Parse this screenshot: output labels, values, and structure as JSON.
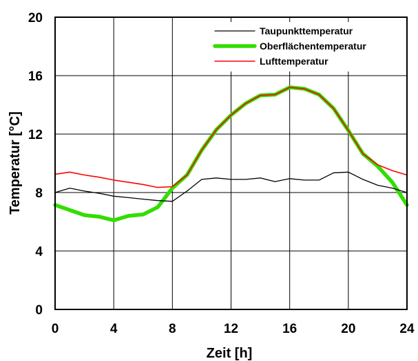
{
  "chart_data": {
    "type": "line",
    "xlabel": "Zeit [h]",
    "ylabel": "Temperatur [°C]",
    "xlim": [
      0,
      24
    ],
    "ylim": [
      0,
      20
    ],
    "x_ticks": [
      "0",
      "4",
      "8",
      "12",
      "16",
      "20",
      "24"
    ],
    "y_ticks": [
      "0",
      "4",
      "8",
      "12",
      "16",
      "20"
    ],
    "grid": true,
    "legend_position": "top-right",
    "series": [
      {
        "name": "Taupunkttemperatur",
        "color": "#000000",
        "x": [
          0,
          1,
          2,
          3,
          4,
          5,
          6,
          7,
          8,
          9,
          10,
          11,
          12,
          13,
          14,
          15,
          16,
          17,
          18,
          19,
          20,
          21,
          22,
          23,
          24
        ],
        "values": [
          8.0,
          8.3,
          8.1,
          7.95,
          7.75,
          7.65,
          7.55,
          7.45,
          7.4,
          8.1,
          8.9,
          9.0,
          8.9,
          8.9,
          9.0,
          8.75,
          8.95,
          8.85,
          8.85,
          9.35,
          9.4,
          8.9,
          8.5,
          8.3,
          8.0
        ]
      },
      {
        "name": "Oberflächentemperatur",
        "color": "#33dd00",
        "x": [
          0,
          1,
          2,
          3,
          4,
          5,
          6,
          7,
          8,
          9,
          10,
          11,
          12,
          13,
          14,
          15,
          16,
          17,
          18,
          19,
          20,
          21,
          22,
          23,
          24
        ],
        "values": [
          7.15,
          6.8,
          6.45,
          6.35,
          6.1,
          6.4,
          6.5,
          7.0,
          8.3,
          9.2,
          10.9,
          12.3,
          13.3,
          14.1,
          14.65,
          14.7,
          15.2,
          15.1,
          14.7,
          13.75,
          12.25,
          10.65,
          9.8,
          8.7,
          7.15
        ]
      },
      {
        "name": "Lufttemperatur",
        "color": "#ff0000",
        "x": [
          0,
          1,
          2,
          3,
          4,
          5,
          6,
          7,
          8,
          9,
          10,
          11,
          12,
          13,
          14,
          15,
          16,
          17,
          18,
          19,
          20,
          21,
          22,
          23,
          24
        ],
        "values": [
          9.25,
          9.4,
          9.2,
          9.05,
          8.85,
          8.7,
          8.55,
          8.35,
          8.4,
          9.2,
          10.9,
          12.3,
          13.3,
          14.1,
          14.65,
          14.7,
          15.2,
          15.1,
          14.7,
          13.75,
          12.25,
          10.65,
          9.9,
          9.5,
          9.2
        ]
      }
    ]
  }
}
